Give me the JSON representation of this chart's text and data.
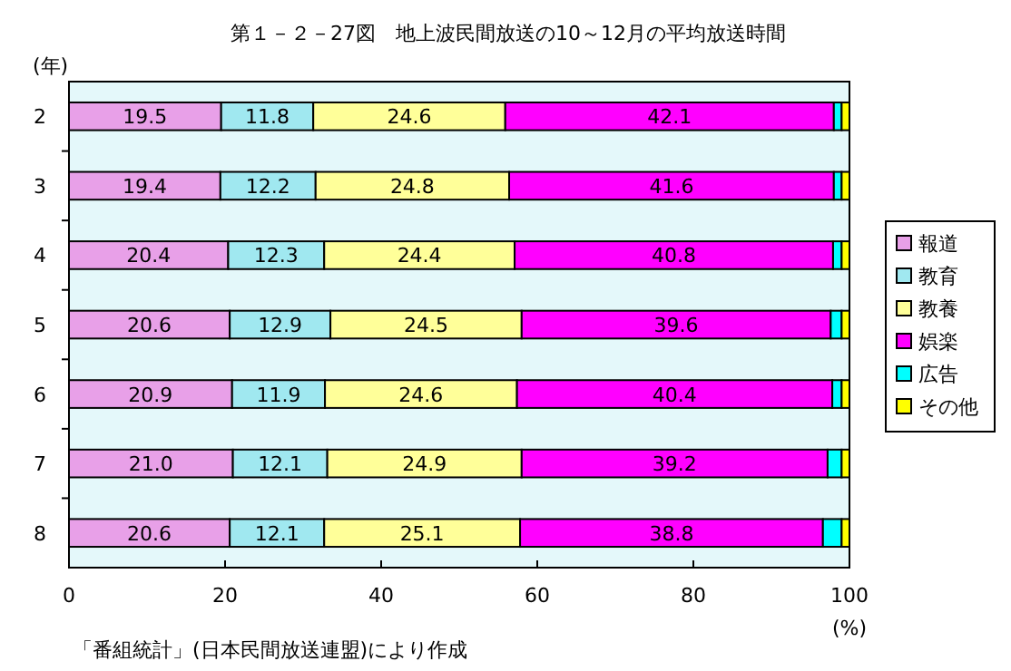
{
  "chart_data": {
    "type": "bar",
    "orientation": "horizontal",
    "stacked": true,
    "title": "第１－２－27図　地上波民間放送の10～12月の平均放送時間",
    "ylabel": "(年)",
    "xlabel": "(%)",
    "categories": [
      "2",
      "3",
      "4",
      "5",
      "6",
      "7",
      "8"
    ],
    "series": [
      {
        "name": "報道",
        "color": "#e8a0e8",
        "values": [
          19.5,
          19.4,
          20.4,
          20.6,
          20.9,
          21.0,
          20.6
        ],
        "value_labels": [
          "19.5",
          "19.4",
          "20.4",
          "20.6",
          "20.9",
          "21.0",
          "20.6"
        ]
      },
      {
        "name": "教育",
        "color": "#a0e8f0",
        "values": [
          11.8,
          12.2,
          12.3,
          12.9,
          11.9,
          12.1,
          12.1
        ],
        "value_labels": [
          "11.8",
          "12.2",
          "12.3",
          "12.9",
          "11.9",
          "12.1",
          "12.1"
        ]
      },
      {
        "name": "教養",
        "color": "#ffff99",
        "values": [
          24.6,
          24.8,
          24.4,
          24.5,
          24.6,
          24.9,
          25.1
        ],
        "value_labels": [
          "24.6",
          "24.8",
          "24.4",
          "24.5",
          "24.6",
          "24.9",
          "25.1"
        ]
      },
      {
        "name": "娯楽",
        "color": "#ff00ff",
        "values": [
          42.1,
          41.6,
          40.8,
          39.6,
          40.4,
          39.2,
          38.8
        ],
        "value_labels": [
          "42.1",
          "41.6",
          "40.8",
          "39.6",
          "40.4",
          "39.2",
          "38.8"
        ]
      },
      {
        "name": "広告",
        "color": "#00ffff",
        "values": [
          1.0,
          1.0,
          1.1,
          1.4,
          1.2,
          1.8,
          2.4
        ]
      },
      {
        "name": "その他",
        "color": "#ffff00",
        "values": [
          1.0,
          1.0,
          1.0,
          1.0,
          1.0,
          1.0,
          1.0
        ]
      }
    ],
    "xlim": [
      0,
      100
    ],
    "xticks": [
      0,
      20,
      40,
      60,
      80,
      100
    ],
    "grid": false,
    "legend": "right",
    "annotations": [
      "「番組統計」(日本民間放送連盟)により作成"
    ]
  }
}
